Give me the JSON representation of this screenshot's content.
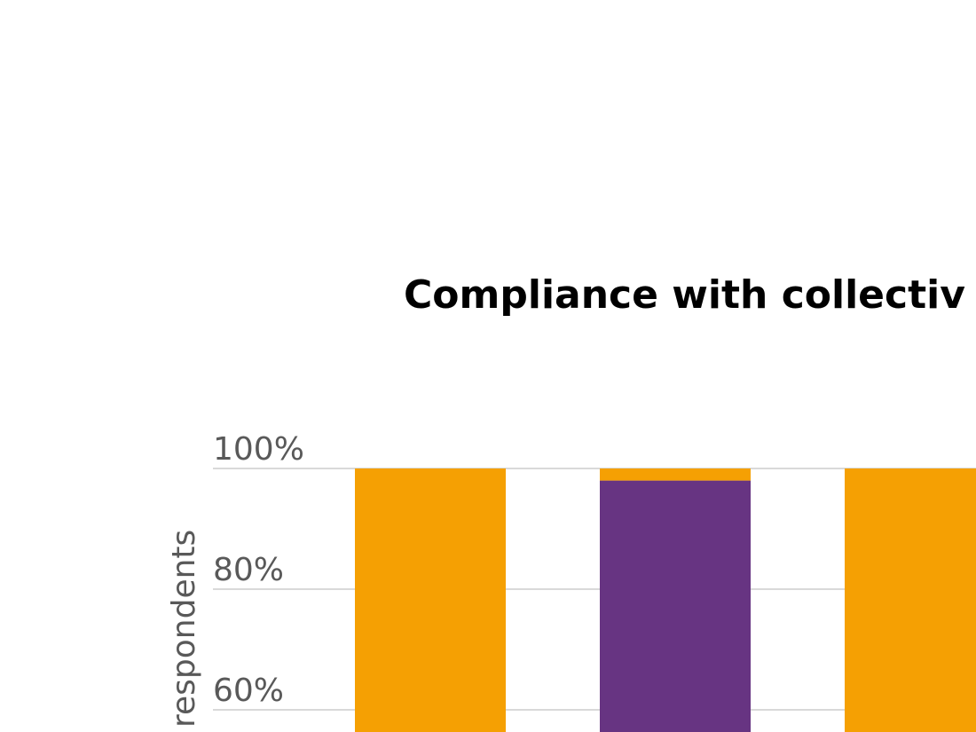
{
  "chart_data": {
    "type": "bar",
    "stacked": true,
    "title": "Compliance with collectiv",
    "ylabel": "respondents",
    "y_ticks": [
      "60%",
      "80%",
      "100%"
    ],
    "ylim": [
      60,
      100
    ],
    "grid": true,
    "colors": {
      "orange": "#F5A003",
      "purple": "#673482"
    },
    "bars": [
      {
        "segments": [
          {
            "color": "#F5A003",
            "from": 0,
            "to": 100
          }
        ]
      },
      {
        "segments": [
          {
            "color": "#673482",
            "from": 0,
            "to": 98
          },
          {
            "color": "#F5A003",
            "from": 98,
            "to": 100
          }
        ]
      },
      {
        "segments": [
          {
            "color": "#F5A003",
            "from": 0,
            "to": 100
          }
        ]
      }
    ]
  }
}
